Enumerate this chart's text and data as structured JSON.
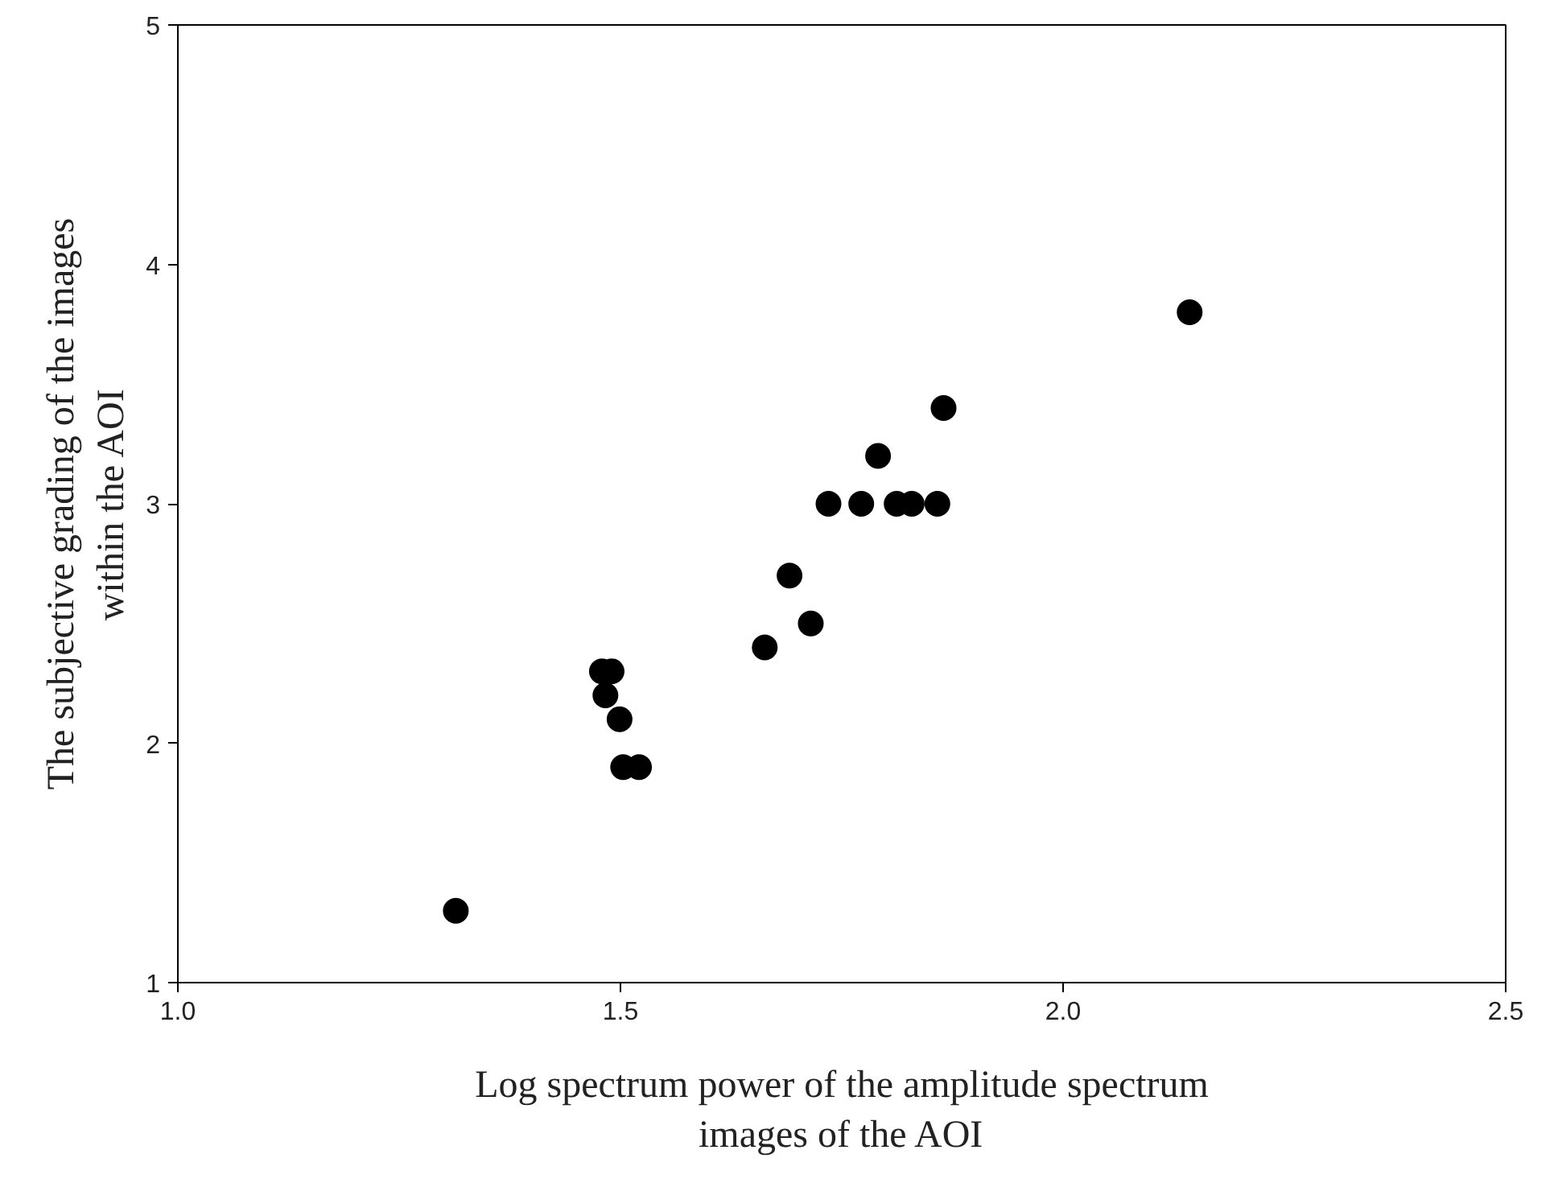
{
  "chart_data": {
    "type": "scatter",
    "xlabel": "Log spectrum power of the amplitude spectrum\nimages of the AOI",
    "ylabel": "The subjective grading of the images\nwithin the AOI",
    "x": [
      1.314,
      1.479,
      1.49,
      1.483,
      1.499,
      1.503,
      1.521,
      1.663,
      1.691,
      1.715,
      1.735,
      1.772,
      1.812,
      1.829,
      1.858,
      1.791,
      1.865,
      2.143
    ],
    "values": [
      1.3,
      2.3,
      2.3,
      2.2,
      2.1,
      1.9,
      1.9,
      2.4,
      2.7,
      2.5,
      3.0,
      3.0,
      3.0,
      3.0,
      3.0,
      3.2,
      3.4,
      3.8
    ],
    "color": "#000000",
    "marker": "circle",
    "xlim": [
      1.0,
      2.5
    ],
    "ylim": [
      1,
      5
    ],
    "xticks": [
      {
        "value": 1.0,
        "label": "1.0"
      },
      1.5,
      {
        "value": 2.0,
        "label": "2.0"
      },
      2.5
    ],
    "yticks": [
      1,
      2,
      3,
      4,
      5
    ],
    "grid": false
  }
}
